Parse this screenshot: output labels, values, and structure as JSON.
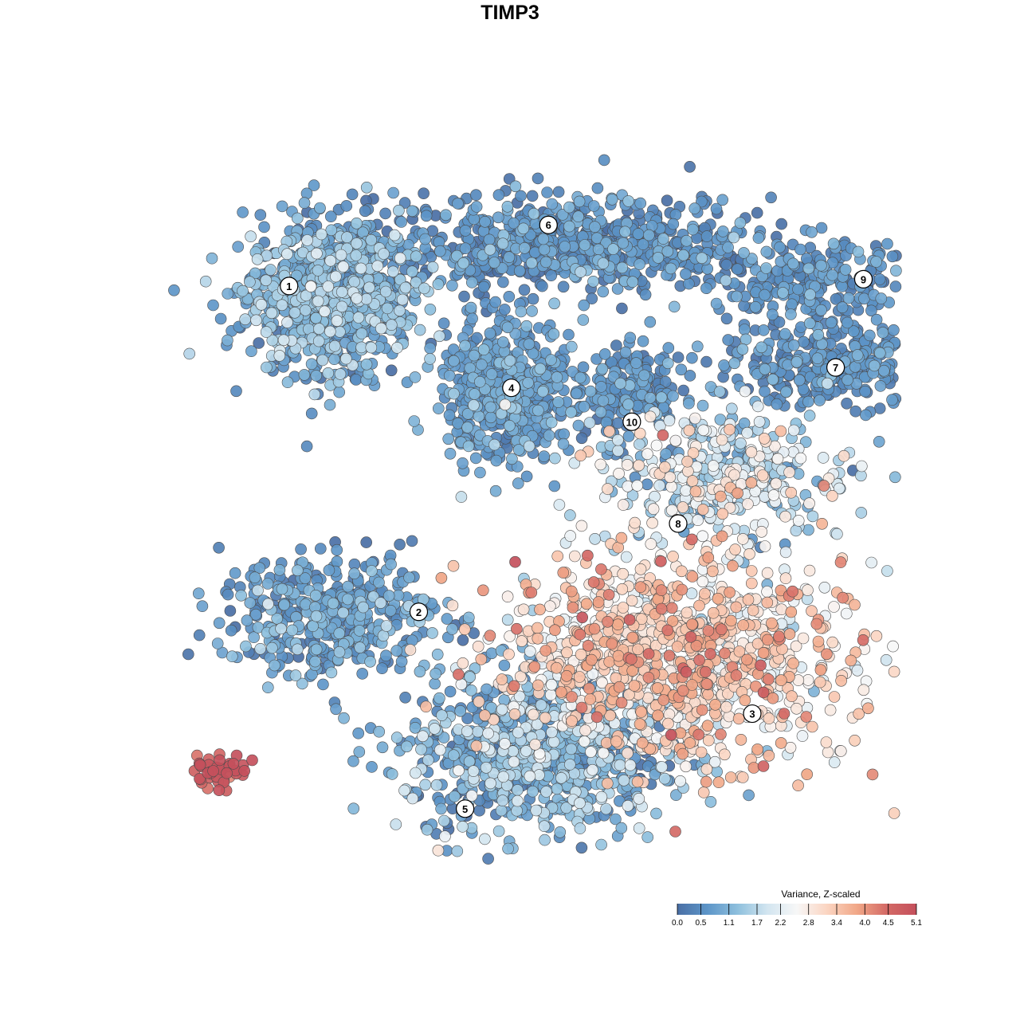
{
  "chart_data": {
    "type": "scatter",
    "title": "TIMP3",
    "xlabel": "",
    "ylabel": "",
    "grid": false,
    "legend": {
      "title": "Variance, Z-scaled",
      "placement": "bottom-right",
      "ticks": [
        "0.0",
        "0.5",
        "1.1",
        "1.7",
        "2.2",
        "2.8",
        "3.4",
        "4.0",
        "4.5",
        "5.1"
      ],
      "range": [
        0.0,
        5.1
      ],
      "colors": [
        "#4a6fa5",
        "#5d95c8",
        "#8dbfdd",
        "#d2e5f0",
        "#f7f7f7",
        "#fbd5c2",
        "#f1a888",
        "#d46a66",
        "#c4505c"
      ]
    },
    "clusters": [
      {
        "label": "1",
        "x": -2.15,
        "y": 2.55,
        "sx": 0.45,
        "sy": 0.55,
        "n": 900,
        "value": 0.9,
        "spread": 0.5
      },
      {
        "label": "6",
        "x": 0.4,
        "y": 3.3,
        "sx": 1.1,
        "sy": 0.35,
        "n": 700,
        "value": 0.5,
        "spread": 0.4
      },
      {
        "label": "4",
        "x": -0.25,
        "y": 1.15,
        "sx": 0.35,
        "sy": 0.5,
        "n": 500,
        "value": 0.7,
        "spread": 0.3
      },
      {
        "label": "10",
        "x": 1.05,
        "y": 1.2,
        "sx": 0.3,
        "sy": 0.35,
        "n": 200,
        "value": 0.5,
        "spread": 0.3
      },
      {
        "label": "9",
        "x": 3.1,
        "y": 2.75,
        "sx": 0.5,
        "sy": 0.3,
        "n": 220,
        "value": 0.5,
        "spread": 0.3
      },
      {
        "label": "7",
        "x": 3.2,
        "y": 1.55,
        "sx": 0.6,
        "sy": 0.3,
        "n": 320,
        "value": 0.5,
        "spread": 0.3
      },
      {
        "label": "8",
        "x": 2.1,
        "y": -0.1,
        "sx": 0.7,
        "sy": 0.5,
        "n": 380,
        "value": 1.9,
        "spread": 0.8
      },
      {
        "label": "2",
        "x": -2.15,
        "y": -2.15,
        "sx": 0.6,
        "sy": 0.45,
        "n": 420,
        "value": 0.7,
        "spread": 0.4
      },
      {
        "label": "3",
        "x": 1.5,
        "y": -2.8,
        "sx": 0.95,
        "sy": 0.75,
        "n": 1100,
        "value": 3.0,
        "spread": 0.7
      },
      {
        "label": "5",
        "x": 0.05,
        "y": -4.2,
        "sx": 0.7,
        "sy": 0.6,
        "n": 800,
        "value": 1.0,
        "spread": 0.6
      },
      {
        "label": "",
        "x": -3.35,
        "y": -4.45,
        "sx": 0.15,
        "sy": 0.12,
        "n": 45,
        "value": 4.9,
        "spread": 0.3
      }
    ],
    "label_positions": [
      {
        "label": "1",
        "x": -2.6,
        "y": 2.7
      },
      {
        "label": "2",
        "x": -1.2,
        "y": -2.1
      },
      {
        "label": "3",
        "x": 2.4,
        "y": -3.6
      },
      {
        "label": "4",
        "x": -0.2,
        "y": 1.2
      },
      {
        "label": "5",
        "x": -0.7,
        "y": -5.0
      },
      {
        "label": "6",
        "x": 0.2,
        "y": 3.6
      },
      {
        "label": "7",
        "x": 3.3,
        "y": 1.5
      },
      {
        "label": "8",
        "x": 1.6,
        "y": -0.8
      },
      {
        "label": "9",
        "x": 3.6,
        "y": 2.8
      },
      {
        "label": "10",
        "x": 1.1,
        "y": 0.7
      }
    ],
    "xlim": [
      -4.0,
      4.0
    ],
    "ylim": [
      -6.0,
      4.8
    ]
  }
}
